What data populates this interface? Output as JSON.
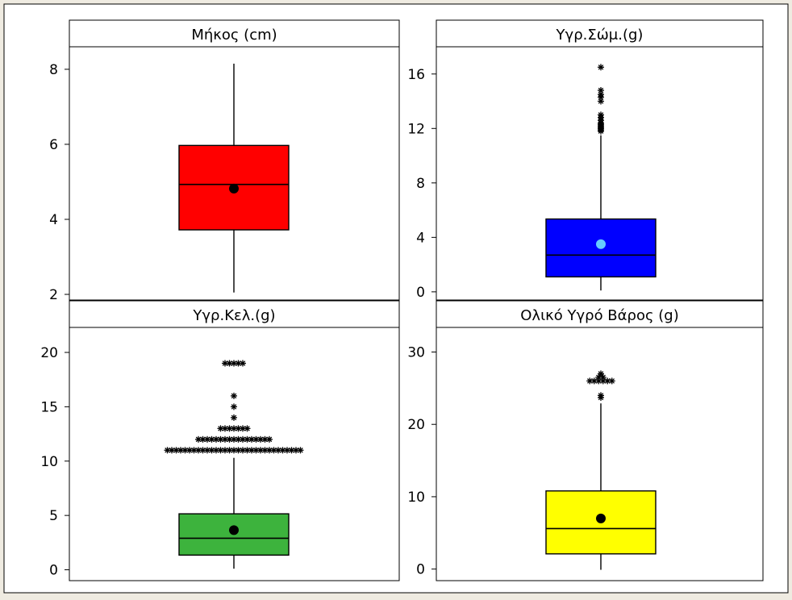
{
  "chart_data": [
    {
      "type": "box",
      "title": "Μήκος (cm)",
      "color": "#ff0000",
      "mean_color": "#000000",
      "ylim": [
        1.85,
        8.6
      ],
      "yticks": [
        2,
        4,
        6,
        8
      ],
      "box": {
        "min": 2.05,
        "q1": 3.72,
        "median": 4.93,
        "q3": 5.97,
        "max": 8.15
      },
      "mean": 4.82,
      "outliers": []
    },
    {
      "type": "box",
      "title": "Υγρ.Σώμ.(g)",
      "color": "#0000ff",
      "mean_color": "#66ccff",
      "ylim": [
        -0.6,
        18.0
      ],
      "yticks": [
        0,
        4,
        8,
        12,
        16
      ],
      "box": {
        "min": 0.1,
        "q1": 1.1,
        "median": 2.7,
        "q3": 5.35,
        "max": 11.5
      },
      "mean": 3.5,
      "outliers": [
        11.8,
        11.9,
        12.0,
        12.1,
        12.2,
        12.3,
        12.4,
        12.6,
        12.8,
        13.0,
        14.0,
        14.3,
        14.5,
        14.8,
        16.5
      ]
    },
    {
      "type": "box",
      "title": "Υγρ.Κελ.(g)",
      "color": "#3db33d",
      "mean_color": "#000000",
      "ylim": [
        -1.0,
        22.3
      ],
      "yticks": [
        0,
        5,
        10,
        15,
        20
      ],
      "box": {
        "min": 0.1,
        "q1": 1.35,
        "median": 2.9,
        "q3": 5.15,
        "max": 10.3
      },
      "mean": 3.65,
      "outliers": [
        {
          "y": 11,
          "n": 31
        },
        {
          "y": 12,
          "n": 17
        },
        {
          "y": 13,
          "n": 7
        },
        {
          "y": 14,
          "n": 1
        },
        {
          "y": 15,
          "n": 1
        },
        {
          "y": 16,
          "n": 1
        },
        {
          "y": 19,
          "n": 5
        }
      ]
    },
    {
      "type": "box",
      "title": "Ολικό Υγρό Βάρος (g)",
      "color": "#ffff00",
      "mean_color": "#000000",
      "ylim": [
        -1.6,
        33.4
      ],
      "yticks": [
        0,
        10,
        20,
        30
      ],
      "box": {
        "min": -0.1,
        "q1": 2.1,
        "median": 5.6,
        "q3": 10.8,
        "max": 22.9
      },
      "mean": 7.0,
      "outliers": [
        {
          "y": 23.7,
          "n": 1
        },
        {
          "y": 24.0,
          "n": 1
        },
        {
          "y": 26.0,
          "n": 6
        },
        {
          "y": 26.5,
          "n": 2
        },
        {
          "y": 27.0,
          "n": 1
        }
      ]
    }
  ]
}
